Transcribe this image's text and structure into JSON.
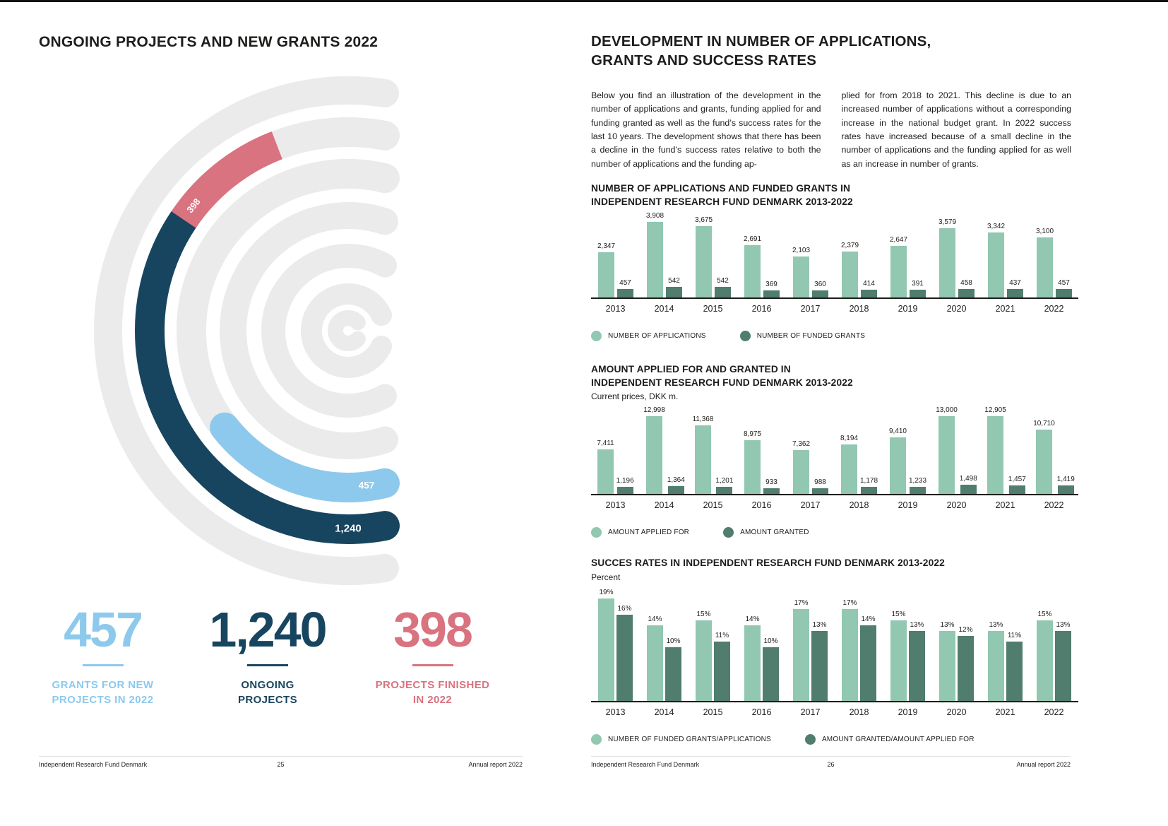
{
  "left_page": {
    "title": "ONGOING PROJECTS AND NEW GRANTS 2022",
    "footer": {
      "org": "Independent Research Fund Denmark",
      "page_number": "25",
      "report": "Annual report 2022"
    }
  },
  "right_page": {
    "title": "DEVELOPMENT IN NUMBER OF APPLICATIONS,\nGRANTS AND SUCCESS RATES",
    "intro_col1": "Below you find an illustration of the development in the number of applications and grants, funding applied for and funding granted as well as the fund’s success rates for the last 10 years. The development shows that there has been a decline in the fund’s success rates relative to both the number of applications and the funding ap-",
    "intro_col2": "plied for from 2018 to 2021. This decline is due to an increased number of applications without a corresponding increase in the national budget grant. In 2022 success rates have increased because of a small decline in the number of applications and the funding applied for as well as an increase in number of grants.",
    "footer": {
      "org": "Independent Research Fund Denmark",
      "page_number": "26",
      "report": "Annual report 2022"
    }
  },
  "chart_data": [
    {
      "type": "radial",
      "title": "ONGOING PROJECTS AND NEW GRANTS 2022",
      "ring_color": "#ebebeb",
      "segments": [
        {
          "id": "new-grants",
          "display": "457",
          "value": 457,
          "label": "GRANTS FOR NEW PROJECTS IN 2022",
          "stat_label": "GRANTS FOR NEW\nPROJECTS IN 2022",
          "color": "#8dc9ec"
        },
        {
          "id": "ongoing",
          "display": "1,240",
          "value": 1240,
          "label": "ONGOING PROJECTS",
          "stat_label": "ONGOING\nPROJECTS",
          "color": "#17455f"
        },
        {
          "id": "finished",
          "display": "398",
          "value": 398,
          "label": "PROJECTS FINISHED IN 2022",
          "stat_label": "PROJECTS FINISHED\nIN 2022",
          "color": "#d9737f"
        }
      ]
    },
    {
      "type": "bar",
      "title": "NUMBER OF APPLICATIONS AND FUNDED GRANTS IN\nINDEPENDENT RESEARCH FUND DENMARK 2013-2022",
      "subtitle": "",
      "categories": [
        "2013",
        "2014",
        "2015",
        "2016",
        "2017",
        "2018",
        "2019",
        "2020",
        "2021",
        "2022"
      ],
      "series": [
        {
          "name": "NUMBER OF APPLICATIONS",
          "color": "#92c7b1",
          "values": [
            2347,
            3908,
            3675,
            2691,
            2103,
            2379,
            2647,
            3579,
            3342,
            3100
          ],
          "labels": [
            "2,347",
            "3,908",
            "3,675",
            "2,691",
            "2,103",
            "2,379",
            "2,647",
            "3,579",
            "3,342",
            "3,100"
          ]
        },
        {
          "name": "NUMBER OF FUNDED GRANTS",
          "color": "#507d6d",
          "values": [
            457,
            542,
            542,
            369,
            360,
            414,
            391,
            458,
            437,
            457
          ],
          "labels": [
            "457",
            "542",
            "542",
            "369",
            "360",
            "414",
            "391",
            "458",
            "437",
            "457"
          ]
        }
      ],
      "ylim": [
        0,
        4000
      ],
      "legend_position": "bottom"
    },
    {
      "type": "bar",
      "title": "AMOUNT APPLIED FOR AND GRANTED IN\nINDEPENDENT RESEARCH FUND DENMARK 2013-2022",
      "subtitle": "Current prices, DKK m.",
      "categories": [
        "2013",
        "2014",
        "2015",
        "2016",
        "2017",
        "2018",
        "2019",
        "2020",
        "2021",
        "2022"
      ],
      "series": [
        {
          "name": "AMOUNT APPLIED FOR",
          "color": "#92c7b1",
          "values": [
            7411,
            12998,
            11368,
            8975,
            7362,
            8194,
            9410,
            13000,
            12905,
            10710
          ],
          "labels": [
            "7,411",
            "12,998",
            "11,368",
            "8,975",
            "7,362",
            "8,194",
            "9,410",
            "13,000",
            "12,905",
            "10,710"
          ]
        },
        {
          "name": "AMOUNT GRANTED",
          "color": "#507d6d",
          "values": [
            1196,
            1364,
            1201,
            933,
            988,
            1178,
            1233,
            1498,
            1457,
            1419
          ],
          "labels": [
            "1,196",
            "1,364",
            "1,201",
            "933",
            "988",
            "1,178",
            "1,233",
            "1,498",
            "1,457",
            "1,419"
          ]
        }
      ],
      "ylim": [
        0,
        13500
      ],
      "legend_position": "bottom"
    },
    {
      "type": "bar",
      "title": "SUCCES RATES IN INDEPENDENT RESEARCH FUND DENMARK 2013-2022",
      "subtitle": "Percent",
      "categories": [
        "2013",
        "2014",
        "2015",
        "2016",
        "2017",
        "2018",
        "2019",
        "2020",
        "2021",
        "2022"
      ],
      "series": [
        {
          "name": "NUMBER OF FUNDED GRANTS/APPLICATIONS",
          "color": "#92c7b1",
          "values": [
            19,
            14,
            15,
            14,
            17,
            17,
            15,
            13,
            13,
            15
          ],
          "labels": [
            "19%",
            "14%",
            "15%",
            "14%",
            "17%",
            "17%",
            "15%",
            "13%",
            "13%",
            "15%"
          ]
        },
        {
          "name": "AMOUNT GRANTED/AMOUNT APPLIED FOR",
          "color": "#507d6d",
          "values": [
            16,
            10,
            11,
            10,
            13,
            14,
            13,
            12,
            11,
            13
          ],
          "labels": [
            "16%",
            "10%",
            "11%",
            "10%",
            "13%",
            "14%",
            "13%",
            "12%",
            "11%",
            "13%"
          ]
        }
      ],
      "ylim": [
        0,
        20
      ],
      "legend_position": "bottom"
    }
  ]
}
